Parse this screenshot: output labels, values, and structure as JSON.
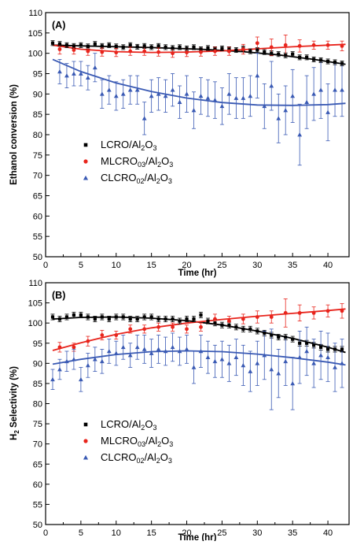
{
  "chart_data": [
    {
      "type": "scatter",
      "panel_label": "(A)",
      "xlabel": "Time (hr)",
      "ylabel": "Ethanol conversion (%)",
      "xlim": [
        0,
        43
      ],
      "ylim": [
        50,
        110
      ],
      "xticks": [
        0,
        5,
        10,
        15,
        20,
        25,
        30,
        35,
        40
      ],
      "yticks": [
        50,
        55,
        60,
        65,
        70,
        75,
        80,
        85,
        90,
        95,
        100,
        105,
        110
      ],
      "legend_position": "center-left",
      "series": [
        {
          "name": "LCRO/Al2O3",
          "color": "#000000",
          "marker": "square",
          "x": [
            1,
            2,
            3,
            4,
            5,
            6,
            7,
            8,
            9,
            10,
            11,
            12,
            13,
            14,
            15,
            16,
            17,
            18,
            19,
            20,
            21,
            22,
            23,
            24,
            25,
            26,
            27,
            28,
            29,
            30,
            31,
            32,
            33,
            34,
            35,
            36,
            37,
            38,
            39,
            40,
            41,
            42
          ],
          "y": [
            102.5,
            102.3,
            102.0,
            101.8,
            102.0,
            101.7,
            102.3,
            101.8,
            102.0,
            101.7,
            101.5,
            102.0,
            101.6,
            101.8,
            101.5,
            101.8,
            101.5,
            101.3,
            101.5,
            101.2,
            101.5,
            101.0,
            101.3,
            101.0,
            101.2,
            101.0,
            100.8,
            101.2,
            100.5,
            100.8,
            100.3,
            100.0,
            99.8,
            99.5,
            99.8,
            99.0,
            99.0,
            98.5,
            98.3,
            98.0,
            97.8,
            97.5
          ],
          "err": [
            0.6,
            0.6,
            0.6,
            0.6,
            0.6,
            0.6,
            0.6,
            0.6,
            0.6,
            0.6,
            0.6,
            0.6,
            0.6,
            0.6,
            0.6,
            0.6,
            0.6,
            0.6,
            0.6,
            0.6,
            0.6,
            0.6,
            0.6,
            0.6,
            0.6,
            0.6,
            0.6,
            0.6,
            0.6,
            0.6,
            0.6,
            0.6,
            0.6,
            0.6,
            0.6,
            0.6,
            0.6,
            0.6,
            0.6,
            0.6,
            0.6,
            0.6
          ],
          "fit": [
            [
              1,
              102.0
            ],
            [
              8,
              101.7
            ],
            [
              15,
              101.4
            ],
            [
              22,
              101.0
            ],
            [
              28,
              100.4
            ],
            [
              33,
              99.6
            ],
            [
              38,
              98.5
            ],
            [
              42.5,
              97.3
            ]
          ]
        },
        {
          "name": "MLCRO03/Al2O3",
          "color": "#e8241c",
          "marker": "circle",
          "x": [
            2,
            4,
            6,
            8,
            10,
            12,
            14,
            16,
            18,
            20,
            22,
            24,
            26,
            28,
            30,
            32,
            34,
            36,
            38,
            40,
            42
          ],
          "y": [
            101.0,
            100.8,
            100.5,
            100.3,
            100.2,
            100.5,
            100.5,
            100.3,
            100.0,
            100.2,
            100.3,
            100.5,
            100.5,
            101.0,
            102.5,
            101.5,
            102.0,
            101.8,
            102.0,
            102.0,
            101.8
          ],
          "err": [
            1.2,
            1.0,
            1.0,
            1.0,
            1.0,
            1.0,
            1.0,
            1.0,
            1.0,
            1.0,
            1.0,
            1.0,
            1.0,
            1.2,
            1.5,
            2.0,
            2.5,
            1.5,
            1.0,
            1.0,
            1.2
          ],
          "fit": [
            [
              1,
              102.0
            ],
            [
              5,
              101.0
            ],
            [
              10,
              100.4
            ],
            [
              15,
              100.2
            ],
            [
              20,
              100.3
            ],
            [
              25,
              100.6
            ],
            [
              30,
              101.1
            ],
            [
              35,
              101.6
            ],
            [
              40,
              102.0
            ],
            [
              42.5,
              102.2
            ]
          ]
        },
        {
          "name": "CLCRO02/Al2O3",
          "color": "#3a5ab4",
          "marker": "triangle",
          "x": [
            2,
            3,
            4,
            5,
            6,
            7,
            8,
            9,
            10,
            11,
            12,
            13,
            14,
            15,
            16,
            17,
            18,
            19,
            20,
            21,
            22,
            23,
            24,
            25,
            26,
            27,
            28,
            29,
            30,
            31,
            32,
            33,
            34,
            35,
            36,
            37,
            38,
            39,
            40,
            41,
            42
          ],
          "y": [
            95.5,
            94.5,
            95.0,
            95.0,
            94.0,
            96.5,
            90.0,
            91.0,
            89.5,
            90.0,
            91.0,
            91.0,
            84.0,
            89.5,
            90.0,
            89.5,
            91.0,
            88.0,
            90.0,
            86.0,
            89.5,
            89.0,
            88.5,
            87.0,
            90.0,
            89.0,
            89.0,
            89.5,
            94.5,
            87.0,
            92.0,
            84.0,
            86.0,
            89.5,
            80.0,
            88.0,
            90.0,
            91.0,
            85.5,
            91.0,
            91.0
          ],
          "err": [
            3.0,
            3.0,
            3.0,
            3.0,
            3.0,
            3.5,
            3.5,
            3.5,
            3.5,
            3.5,
            3.5,
            3.5,
            4.0,
            4.0,
            4.0,
            4.0,
            4.0,
            4.0,
            4.5,
            4.5,
            4.5,
            4.5,
            4.5,
            4.5,
            5.0,
            5.0,
            5.0,
            5.0,
            5.5,
            5.5,
            6.0,
            6.0,
            6.0,
            6.5,
            7.5,
            6.5,
            6.5,
            7.0,
            7.0,
            6.5,
            6.5
          ],
          "fit": [
            [
              1,
              98.5
            ],
            [
              5,
              95.5
            ],
            [
              10,
              92.7
            ],
            [
              15,
              90.6
            ],
            [
              20,
              89.0
            ],
            [
              25,
              87.9
            ],
            [
              30,
              87.3
            ],
            [
              35,
              87.2
            ],
            [
              40,
              87.4
            ],
            [
              42.5,
              87.7
            ]
          ]
        }
      ]
    },
    {
      "type": "scatter",
      "panel_label": "(B)",
      "xlabel": "Time (hr)",
      "ylabel": "H2 Selectivity (%)",
      "xlim": [
        0,
        43
      ],
      "ylim": [
        50,
        110
      ],
      "xticks": [
        0,
        5,
        10,
        15,
        20,
        25,
        30,
        35,
        40
      ],
      "yticks": [
        50,
        55,
        60,
        65,
        70,
        75,
        80,
        85,
        90,
        95,
        100,
        105,
        110
      ],
      "legend_position": "center-left",
      "series": [
        {
          "name": "LCRO/Al2O3",
          "color": "#000000",
          "marker": "square",
          "x": [
            1,
            2,
            3,
            4,
            5,
            6,
            7,
            8,
            9,
            10,
            11,
            12,
            13,
            14,
            15,
            16,
            17,
            18,
            19,
            20,
            21,
            22,
            23,
            24,
            25,
            26,
            27,
            28,
            29,
            30,
            31,
            32,
            33,
            34,
            35,
            36,
            37,
            38,
            39,
            40,
            41,
            42
          ],
          "y": [
            101.5,
            101.0,
            101.5,
            102.0,
            102.0,
            101.5,
            101.0,
            101.5,
            101.0,
            101.5,
            101.5,
            101.0,
            101.0,
            101.5,
            101.5,
            101.0,
            101.0,
            101.0,
            100.5,
            101.0,
            101.0,
            102.0,
            100.5,
            100.0,
            99.5,
            99.5,
            99.0,
            98.5,
            98.5,
            98.0,
            97.5,
            97.0,
            96.5,
            96.5,
            96.0,
            95.0,
            95.0,
            94.5,
            94.0,
            93.5,
            93.5,
            93.5
          ],
          "err": [
            0.7,
            0.7,
            0.7,
            0.7,
            0.7,
            0.7,
            0.7,
            0.7,
            0.7,
            0.7,
            0.7,
            0.7,
            0.7,
            0.7,
            0.7,
            0.7,
            0.7,
            0.7,
            0.7,
            0.7,
            0.7,
            0.7,
            0.7,
            0.7,
            0.7,
            0.7,
            0.7,
            0.7,
            0.7,
            0.7,
            0.7,
            0.7,
            0.7,
            0.7,
            0.7,
            0.7,
            0.7,
            0.7,
            0.7,
            0.7,
            0.7,
            0.7
          ],
          "fit": [
            [
              1,
              101.0
            ],
            [
              5,
              101.4
            ],
            [
              10,
              101.5
            ],
            [
              15,
              101.2
            ],
            [
              20,
              100.6
            ],
            [
              25,
              99.5
            ],
            [
              30,
              98.0
            ],
            [
              35,
              96.2
            ],
            [
              40,
              94.0
            ],
            [
              42.5,
              92.7
            ]
          ]
        },
        {
          "name": "MLCRO03/Al2O3",
          "color": "#e8241c",
          "marker": "circle",
          "x": [
            2,
            4,
            6,
            8,
            10,
            12,
            14,
            16,
            18,
            20,
            22,
            24,
            26,
            28,
            30,
            32,
            34,
            36,
            38,
            40,
            42
          ],
          "y": [
            94.0,
            94.0,
            95.5,
            97.0,
            97.0,
            98.5,
            98.5,
            99.0,
            99.0,
            98.5,
            99.0,
            101.0,
            100.5,
            101.0,
            101.5,
            101.5,
            102.5,
            102.5,
            102.5,
            103.0,
            103.0
          ],
          "err": [
            1.2,
            1.0,
            1.2,
            1.2,
            1.0,
            1.0,
            1.0,
            1.0,
            1.0,
            1.0,
            1.0,
            1.2,
            1.2,
            1.2,
            1.5,
            1.5,
            3.5,
            2.0,
            1.5,
            1.5,
            1.8
          ],
          "fit": [
            [
              1,
              93.2
            ],
            [
              5,
              95.1
            ],
            [
              10,
              97.2
            ],
            [
              15,
              98.8
            ],
            [
              20,
              100.0
            ],
            [
              25,
              100.9
            ],
            [
              30,
              101.7
            ],
            [
              35,
              102.4
            ],
            [
              40,
              103.1
            ],
            [
              42.5,
              103.5
            ]
          ]
        },
        {
          "name": "CLCRO02/Al2O3",
          "color": "#3a5ab4",
          "marker": "triangle",
          "x": [
            1,
            2,
            3,
            4,
            5,
            6,
            7,
            8,
            9,
            10,
            11,
            12,
            13,
            14,
            15,
            16,
            17,
            18,
            19,
            20,
            21,
            22,
            23,
            24,
            25,
            26,
            27,
            28,
            29,
            30,
            31,
            32,
            33,
            34,
            35,
            36,
            37,
            38,
            39,
            40,
            41,
            42
          ],
          "y": [
            86.0,
            88.5,
            90.5,
            91.0,
            86.0,
            89.5,
            91.0,
            90.5,
            93.0,
            92.5,
            94.0,
            92.0,
            94.0,
            93.5,
            92.5,
            93.5,
            93.0,
            94.0,
            93.0,
            93.5,
            89.0,
            93.0,
            91.5,
            90.5,
            91.0,
            90.0,
            91.5,
            89.5,
            88.0,
            90.0,
            92.0,
            88.5,
            87.5,
            90.5,
            85.0,
            91.5,
            93.0,
            90.0,
            92.0,
            91.5,
            89.0,
            90.0
          ],
          "err": [
            2.5,
            2.5,
            2.5,
            2.5,
            3.0,
            3.0,
            3.0,
            3.0,
            3.0,
            3.0,
            3.0,
            3.0,
            3.0,
            3.5,
            3.5,
            3.5,
            3.5,
            3.5,
            3.5,
            3.5,
            4.0,
            4.0,
            4.0,
            4.0,
            4.5,
            4.5,
            4.5,
            5.0,
            5.0,
            5.5,
            6.0,
            10.0,
            6.0,
            6.0,
            6.5,
            6.5,
            6.0,
            6.0,
            6.0,
            6.0,
            6.0,
            6.0
          ],
          "fit": [
            [
              1,
              89.8
            ],
            [
              5,
              91.0
            ],
            [
              10,
              92.2
            ],
            [
              15,
              92.9
            ],
            [
              20,
              93.1
            ],
            [
              25,
              92.9
            ],
            [
              30,
              92.3
            ],
            [
              35,
              91.4
            ],
            [
              40,
              90.3
            ],
            [
              42.5,
              89.6
            ]
          ]
        }
      ]
    }
  ]
}
